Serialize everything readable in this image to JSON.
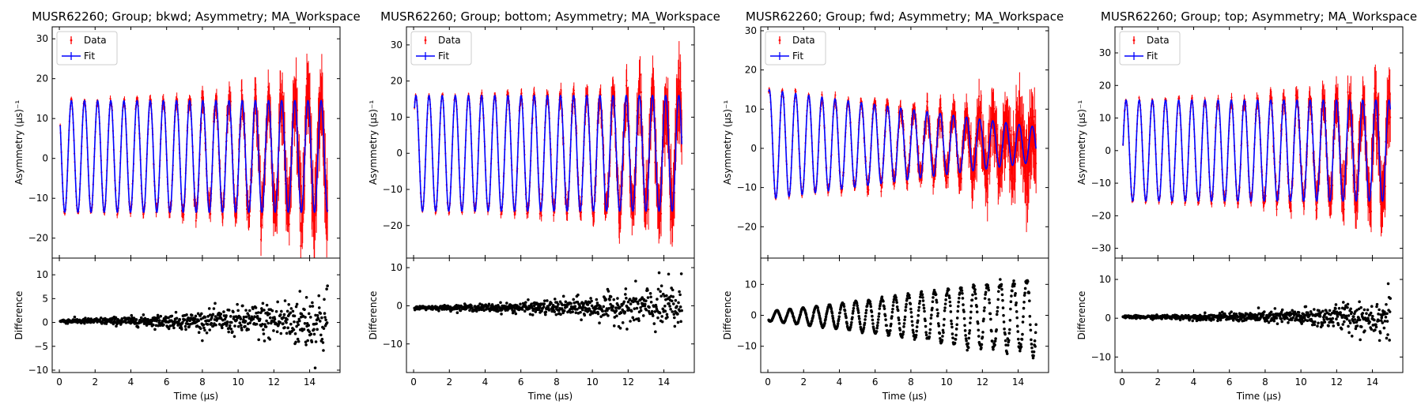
{
  "chart_data": [
    {
      "type": "scatter",
      "title": "MUSR62260; Group; bkwd; Asymmetry; MA_Workspace",
      "top": {
        "ylabel": "Asymmetry ($\\mu s$)$^{-1}$",
        "ylim": [
          -25,
          33
        ],
        "yticks": [
          -20,
          -10,
          0,
          10,
          20,
          30
        ],
        "series": [
          {
            "name": "Data",
            "style": "errorbar",
            "color": "#ff0000"
          },
          {
            "name": "Fit",
            "style": "line",
            "color": "#0000ff"
          }
        ],
        "model": {
          "A": 14,
          "freq": 1.36,
          "phase": 0.55,
          "growth": 0.0,
          "offset": 0.5,
          "noise_start": 0.5,
          "noise_end": 9.5
        }
      },
      "bottom": {
        "ylabel": "Difference",
        "ylim": [
          -10.5,
          13.5
        ],
        "yticks": [
          -10,
          -5,
          0,
          5,
          10
        ],
        "series": [
          {
            "name": "Difference",
            "style": "scatter",
            "color": "#000000"
          }
        ],
        "model": {
          "scatter_start": 0.4,
          "scatter_end": 6.5,
          "osc": 0.0,
          "offset": 0.3
        }
      },
      "xlabel": "Time ($\\mu s$)",
      "xlim": [
        -0.4,
        15.7
      ],
      "xticks": [
        0,
        2,
        4,
        6,
        8,
        10,
        12,
        14
      ],
      "legend": "top-left"
    },
    {
      "type": "scatter",
      "title": "MUSR62260; Group; bottom; Asymmetry; MA_Workspace",
      "top": {
        "ylabel": "Asymmetry ($\\mu s$)$^{-1}$",
        "ylim": [
          -29,
          35
        ],
        "yticks": [
          -20,
          -10,
          0,
          10,
          20,
          30
        ],
        "series": [
          {
            "name": "Data",
            "style": "errorbar",
            "color": "#ff0000"
          },
          {
            "name": "Fit",
            "style": "line",
            "color": "#0000ff"
          }
        ],
        "model": {
          "A": 16,
          "freq": 1.36,
          "phase": -1.1,
          "growth": 0.0,
          "offset": 0.0,
          "noise_start": 0.5,
          "noise_end": 9.5
        }
      },
      "bottom": {
        "ylabel": "Difference",
        "ylim": [
          -17.5,
          12.5
        ],
        "yticks": [
          -10,
          0,
          10
        ],
        "series": [
          {
            "name": "Difference",
            "style": "scatter",
            "color": "#000000"
          }
        ],
        "model": {
          "scatter_start": 0.4,
          "scatter_end": 6.5,
          "osc": 0.0,
          "offset": -0.5
        }
      },
      "xlabel": "Time ($\\mu s$)",
      "xlim": [
        -0.4,
        15.7
      ],
      "xticks": [
        0,
        2,
        4,
        6,
        8,
        10,
        12,
        14
      ],
      "legend": "top-left"
    },
    {
      "type": "scatter",
      "title": "MUSR62260; Group; fwd; Asymmetry; MA_Workspace",
      "top": {
        "ylabel": "Asymmetry ($\\mu s$)$^{-1}$",
        "ylim": [
          -28,
          31
        ],
        "yticks": [
          -20,
          -10,
          0,
          10,
          20,
          30
        ],
        "series": [
          {
            "name": "Data",
            "style": "errorbar",
            "color": "#ff0000"
          },
          {
            "name": "Fit",
            "style": "line",
            "color": "#0000ff"
          }
        ],
        "model": {
          "A": 14,
          "freq": 1.36,
          "phase": -0.7,
          "growth": 0.0,
          "offset": 1.0,
          "decay_to": 4.5,
          "noise_start": 0.5,
          "noise_end": 9.0
        }
      },
      "bottom": {
        "ylabel": "Difference",
        "ylim": [
          -18.5,
          18.5
        ],
        "yticks": [
          -10,
          0,
          10
        ],
        "series": [
          {
            "name": "Difference",
            "style": "scatter",
            "color": "#000000"
          }
        ],
        "model": {
          "scatter_start": 0.2,
          "scatter_end": 6.5,
          "osc": 1.6,
          "osc_growth": 12.5,
          "offset": -1.0
        }
      },
      "xlabel": "Time ($\\mu s$)",
      "xlim": [
        -0.4,
        15.7
      ],
      "xticks": [
        0,
        2,
        4,
        6,
        8,
        10,
        12,
        14
      ],
      "legend": "top-left"
    },
    {
      "type": "scatter",
      "title": "MUSR62260; Group; top; Asymmetry; MA_Workspace",
      "top": {
        "ylabel": "Asymmetry ($\\mu s$)$^{-1}$",
        "ylim": [
          -33,
          38
        ],
        "yticks": [
          -30,
          -20,
          -10,
          0,
          10,
          20,
          30
        ],
        "series": [
          {
            "name": "Data",
            "style": "errorbar",
            "color": "#ff0000"
          },
          {
            "name": "Fit",
            "style": "line",
            "color": "#0000ff"
          }
        ],
        "model": {
          "A": 15.5,
          "freq": 1.36,
          "phase": -1.9,
          "growth": 0.0,
          "offset": 0.0,
          "noise_start": 0.5,
          "noise_end": 9.5
        }
      },
      "bottom": {
        "ylabel": "Difference",
        "ylim": [
          -14,
          15.5
        ],
        "yticks": [
          -10,
          0,
          10
        ],
        "series": [
          {
            "name": "Difference",
            "style": "scatter",
            "color": "#000000"
          }
        ],
        "model": {
          "scatter_start": 0.3,
          "scatter_end": 6.8,
          "osc": 0.0,
          "offset": 0.3
        }
      },
      "xlabel": "Time ($\\mu s$)",
      "xlim": [
        -0.4,
        15.7
      ],
      "xticks": [
        0,
        2,
        4,
        6,
        8,
        10,
        12,
        14
      ],
      "legend": "top-left"
    }
  ]
}
